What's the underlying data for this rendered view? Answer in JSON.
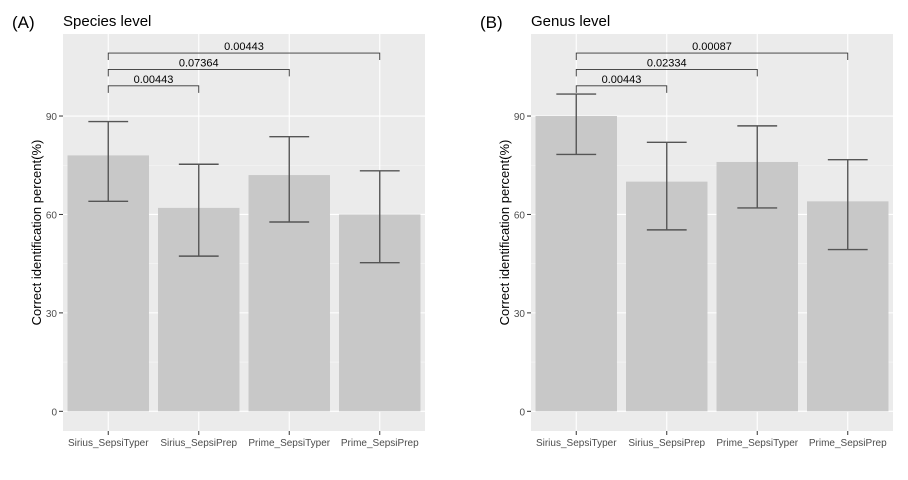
{
  "chart_data": [
    {
      "type": "bar",
      "panel_label": "(A)",
      "title": "Species level",
      "xlabel": "",
      "ylabel": "Correct identification percent(%)",
      "categories": [
        "Sirius_SepsiTyper",
        "Sirius_SepsiPrep",
        "Prime_SepsiTyper",
        "Prime_SepsiPrep"
      ],
      "values": [
        78,
        62,
        72,
        60
      ],
      "error_low": [
        64,
        47.3,
        57.7,
        45.3
      ],
      "error_high": [
        88.3,
        75.3,
        83.7,
        73.3
      ],
      "ylim": [
        -6,
        115
      ],
      "yticks": [
        0,
        30,
        60,
        90
      ],
      "grid": true,
      "bar_color": "#c8c8c8",
      "panel_background": "#ebebeb",
      "comparisons": [
        {
          "from": "Sirius_SepsiTyper",
          "to": "Sirius_SepsiPrep",
          "label": "0.00443",
          "y": 99.2
        },
        {
          "from": "Sirius_SepsiTyper",
          "to": "Prime_SepsiTyper",
          "label": "0.07364",
          "y": 104.2
        },
        {
          "from": "Sirius_SepsiTyper",
          "to": "Prime_SepsiPrep",
          "label": "0.00443",
          "y": 109.2
        }
      ]
    },
    {
      "type": "bar",
      "panel_label": "(B)",
      "title": "Genus level",
      "xlabel": "",
      "ylabel": "Correct identification percent(%)",
      "categories": [
        "Sirius_SepsiTyper",
        "Sirius_SepsiPrep",
        "Prime_SepsiTyper",
        "Prime_SepsiPrep"
      ],
      "values": [
        90,
        70,
        76,
        64
      ],
      "error_low": [
        78.3,
        55.3,
        62,
        49.3
      ],
      "error_high": [
        96.7,
        82,
        87,
        76.7
      ],
      "ylim": [
        -6,
        115
      ],
      "yticks": [
        0,
        30,
        60,
        90
      ],
      "grid": true,
      "bar_color": "#c8c8c8",
      "panel_background": "#ebebeb",
      "comparisons": [
        {
          "from": "Sirius_SepsiTyper",
          "to": "Sirius_SepsiPrep",
          "label": "0.00443",
          "y": 99.2
        },
        {
          "from": "Sirius_SepsiTyper",
          "to": "Prime_SepsiTyper",
          "label": "0.02334",
          "y": 104.2
        },
        {
          "from": "Sirius_SepsiTyper",
          "to": "Prime_SepsiPrep",
          "label": "0.00087",
          "y": 109.2
        }
      ]
    }
  ]
}
